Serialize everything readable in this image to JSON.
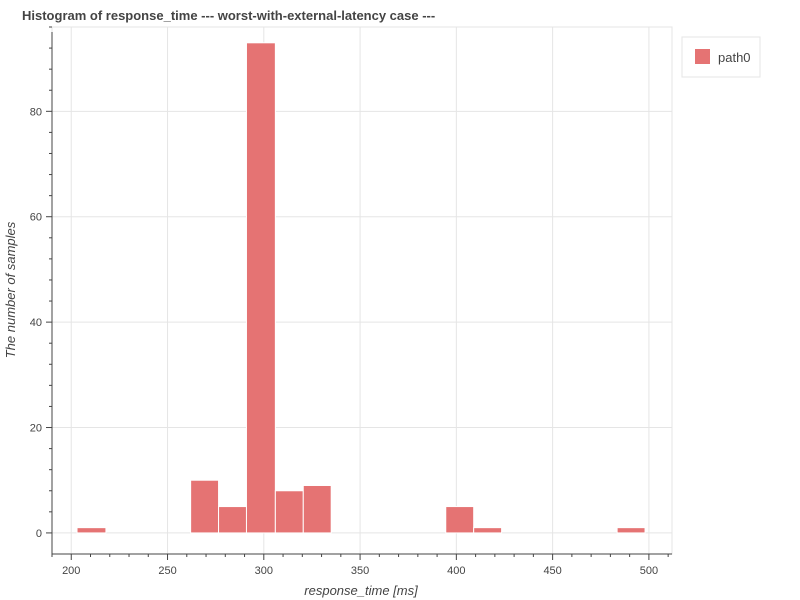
{
  "chart_data": {
    "type": "bar",
    "title": "Histogram of response_time --- worst-with-external-latency case ---",
    "xlabel": "response_time [ms]",
    "ylabel": "The number of samples",
    "xlim": [
      190,
      512
    ],
    "ylim": [
      -4,
      96
    ],
    "x_ticks": [
      200,
      250,
      300,
      350,
      400,
      450,
      500
    ],
    "y_ticks": [
      0,
      20,
      40,
      60,
      80
    ],
    "grid": true,
    "legend_placement": "top-right",
    "series": [
      {
        "name": "path0",
        "color": "#e57373",
        "bins": [
          {
            "x0": 203,
            "x1": 218,
            "count": 1
          },
          {
            "x0": 262,
            "x1": 276.5,
            "count": 10
          },
          {
            "x0": 276.5,
            "x1": 291,
            "count": 5
          },
          {
            "x0": 291,
            "x1": 306,
            "count": 93
          },
          {
            "x0": 306,
            "x1": 320.5,
            "count": 8
          },
          {
            "x0": 320.5,
            "x1": 335,
            "count": 9
          },
          {
            "x0": 394.5,
            "x1": 409,
            "count": 5
          },
          {
            "x0": 409,
            "x1": 423.5,
            "count": 1
          },
          {
            "x0": 483.5,
            "x1": 498,
            "count": 1
          }
        ]
      }
    ]
  }
}
